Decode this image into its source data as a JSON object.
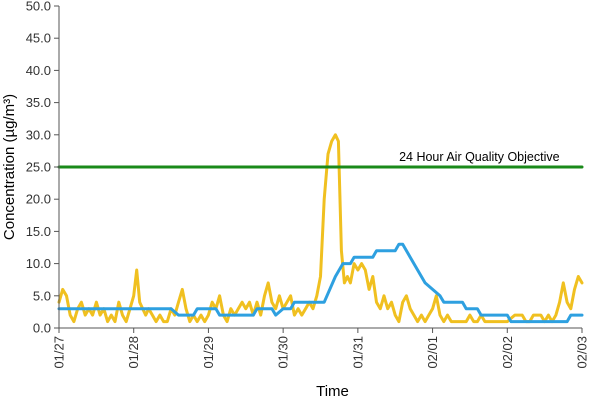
{
  "chart_data": {
    "type": "line",
    "title": "",
    "xlabel": "Time",
    "ylabel": "Concentration (µg/m³)",
    "ylim": [
      0,
      50
    ],
    "y_ticks": [
      0.0,
      5.0,
      10.0,
      15.0,
      20.0,
      25.0,
      30.0,
      35.0,
      40.0,
      45.0,
      50.0
    ],
    "y_tick_labels": [
      "0.0",
      "5.0",
      "10.0",
      "15.0",
      "20.0",
      "25.0",
      "30.0",
      "35.0",
      "40.0",
      "45.0",
      "50.0"
    ],
    "x_tick_labels": [
      "01/27",
      "01/28",
      "01/29",
      "01/30",
      "01/31",
      "02/01",
      "02/02",
      "02/03"
    ],
    "xlim": [
      0,
      7
    ],
    "grid": false,
    "legend": "none",
    "annotations": [
      {
        "text": "24 Hour Air Quality Objective",
        "x": 6.7,
        "y": 25.0
      }
    ],
    "series": [
      {
        "color": "#f0c020",
        "points": [
          [
            0.0,
            4.0
          ],
          [
            0.05,
            6.0
          ],
          [
            0.1,
            5.0
          ],
          [
            0.15,
            2.0
          ],
          [
            0.2,
            1.0
          ],
          [
            0.25,
            3.0
          ],
          [
            0.3,
            4.0
          ],
          [
            0.35,
            2.0
          ],
          [
            0.4,
            3.0
          ],
          [
            0.45,
            2.0
          ],
          [
            0.5,
            4.0
          ],
          [
            0.55,
            2.0
          ],
          [
            0.6,
            3.0
          ],
          [
            0.65,
            1.0
          ],
          [
            0.7,
            2.0
          ],
          [
            0.75,
            1.0
          ],
          [
            0.8,
            4.0
          ],
          [
            0.85,
            2.0
          ],
          [
            0.9,
            1.0
          ],
          [
            0.95,
            3.0
          ],
          [
            1.0,
            5.0
          ],
          [
            1.04,
            9.0
          ],
          [
            1.08,
            4.0
          ],
          [
            1.12,
            3.0
          ],
          [
            1.16,
            2.0
          ],
          [
            1.2,
            3.0
          ],
          [
            1.25,
            2.0
          ],
          [
            1.3,
            1.0
          ],
          [
            1.35,
            2.0
          ],
          [
            1.4,
            1.0
          ],
          [
            1.45,
            1.0
          ],
          [
            1.5,
            3.0
          ],
          [
            1.55,
            2.0
          ],
          [
            1.6,
            4.0
          ],
          [
            1.65,
            6.0
          ],
          [
            1.7,
            3.0
          ],
          [
            1.75,
            1.0
          ],
          [
            1.8,
            2.0
          ],
          [
            1.85,
            1.0
          ],
          [
            1.9,
            2.0
          ],
          [
            1.95,
            1.0
          ],
          [
            2.0,
            2.0
          ],
          [
            2.05,
            4.0
          ],
          [
            2.1,
            3.0
          ],
          [
            2.15,
            5.0
          ],
          [
            2.2,
            2.0
          ],
          [
            2.25,
            1.0
          ],
          [
            2.3,
            3.0
          ],
          [
            2.35,
            2.0
          ],
          [
            2.4,
            3.0
          ],
          [
            2.45,
            4.0
          ],
          [
            2.5,
            3.0
          ],
          [
            2.55,
            4.0
          ],
          [
            2.6,
            2.0
          ],
          [
            2.65,
            4.0
          ],
          [
            2.7,
            2.0
          ],
          [
            2.75,
            5.0
          ],
          [
            2.8,
            7.0
          ],
          [
            2.85,
            4.0
          ],
          [
            2.9,
            3.0
          ],
          [
            2.95,
            5.0
          ],
          [
            3.0,
            3.0
          ],
          [
            3.05,
            4.0
          ],
          [
            3.1,
            5.0
          ],
          [
            3.15,
            2.0
          ],
          [
            3.2,
            3.0
          ],
          [
            3.25,
            2.0
          ],
          [
            3.3,
            3.0
          ],
          [
            3.35,
            4.0
          ],
          [
            3.4,
            3.0
          ],
          [
            3.45,
            5.0
          ],
          [
            3.5,
            8.0
          ],
          [
            3.55,
            20.0
          ],
          [
            3.6,
            27.0
          ],
          [
            3.65,
            29.0
          ],
          [
            3.7,
            30.0
          ],
          [
            3.74,
            29.0
          ],
          [
            3.78,
            12.0
          ],
          [
            3.82,
            7.0
          ],
          [
            3.86,
            8.0
          ],
          [
            3.9,
            7.0
          ],
          [
            3.95,
            10.0
          ],
          [
            4.0,
            9.0
          ],
          [
            4.05,
            10.0
          ],
          [
            4.1,
            9.0
          ],
          [
            4.15,
            6.0
          ],
          [
            4.2,
            8.0
          ],
          [
            4.25,
            4.0
          ],
          [
            4.3,
            3.0
          ],
          [
            4.35,
            5.0
          ],
          [
            4.4,
            3.0
          ],
          [
            4.45,
            4.0
          ],
          [
            4.5,
            2.0
          ],
          [
            4.55,
            1.0
          ],
          [
            4.6,
            4.0
          ],
          [
            4.65,
            5.0
          ],
          [
            4.7,
            3.0
          ],
          [
            4.75,
            2.0
          ],
          [
            4.8,
            1.0
          ],
          [
            4.85,
            2.0
          ],
          [
            4.9,
            1.0
          ],
          [
            4.95,
            2.0
          ],
          [
            5.0,
            3.0
          ],
          [
            5.05,
            5.0
          ],
          [
            5.1,
            2.0
          ],
          [
            5.15,
            1.0
          ],
          [
            5.2,
            2.0
          ],
          [
            5.25,
            1.0
          ],
          [
            5.3,
            1.0
          ],
          [
            5.35,
            1.0
          ],
          [
            5.4,
            1.0
          ],
          [
            5.45,
            1.0
          ],
          [
            5.5,
            2.0
          ],
          [
            5.55,
            1.0
          ],
          [
            5.6,
            1.0
          ],
          [
            5.65,
            2.0
          ],
          [
            5.7,
            1.0
          ],
          [
            5.75,
            1.0
          ],
          [
            5.8,
            1.0
          ],
          [
            5.85,
            1.0
          ],
          [
            5.9,
            1.0
          ],
          [
            5.95,
            1.0
          ],
          [
            6.0,
            1.0
          ],
          [
            6.05,
            1.5
          ],
          [
            6.1,
            2.0
          ],
          [
            6.15,
            2.0
          ],
          [
            6.2,
            2.0
          ],
          [
            6.25,
            1.0
          ],
          [
            6.3,
            1.0
          ],
          [
            6.35,
            2.0
          ],
          [
            6.4,
            2.0
          ],
          [
            6.45,
            2.0
          ],
          [
            6.5,
            1.0
          ],
          [
            6.55,
            2.0
          ],
          [
            6.6,
            1.0
          ],
          [
            6.65,
            2.0
          ],
          [
            6.7,
            4.0
          ],
          [
            6.75,
            7.0
          ],
          [
            6.8,
            4.0
          ],
          [
            6.85,
            3.0
          ],
          [
            6.9,
            6.0
          ],
          [
            6.95,
            8.0
          ],
          [
            7.0,
            7.0
          ]
        ]
      },
      {
        "color": "#2ea0e0",
        "points": [
          [
            0.0,
            3.0
          ],
          [
            1.0,
            3.0
          ],
          [
            1.5,
            3.0
          ],
          [
            1.6,
            2.0
          ],
          [
            1.8,
            2.0
          ],
          [
            1.85,
            3.0
          ],
          [
            2.1,
            3.0
          ],
          [
            2.15,
            2.0
          ],
          [
            2.6,
            2.0
          ],
          [
            2.65,
            3.0
          ],
          [
            2.85,
            3.0
          ],
          [
            2.9,
            2.0
          ],
          [
            3.0,
            3.0
          ],
          [
            3.1,
            3.0
          ],
          [
            3.15,
            4.0
          ],
          [
            3.55,
            4.0
          ],
          [
            3.7,
            8.0
          ],
          [
            3.8,
            10.0
          ],
          [
            3.9,
            10.0
          ],
          [
            3.95,
            11.0
          ],
          [
            4.2,
            11.0
          ],
          [
            4.25,
            12.0
          ],
          [
            4.5,
            12.0
          ],
          [
            4.55,
            13.0
          ],
          [
            4.6,
            13.0
          ],
          [
            4.7,
            11.0
          ],
          [
            4.8,
            9.0
          ],
          [
            4.9,
            7.0
          ],
          [
            5.0,
            6.0
          ],
          [
            5.1,
            5.0
          ],
          [
            5.15,
            4.0
          ],
          [
            5.4,
            4.0
          ],
          [
            5.45,
            3.0
          ],
          [
            5.6,
            3.0
          ],
          [
            5.65,
            2.0
          ],
          [
            6.0,
            2.0
          ],
          [
            6.05,
            1.0
          ],
          [
            6.8,
            1.0
          ],
          [
            6.85,
            2.0
          ],
          [
            7.0,
            2.0
          ]
        ]
      },
      {
        "color": "#1a8a1a",
        "points": [
          [
            0.0,
            25.0
          ],
          [
            7.0,
            25.0
          ]
        ]
      }
    ]
  }
}
